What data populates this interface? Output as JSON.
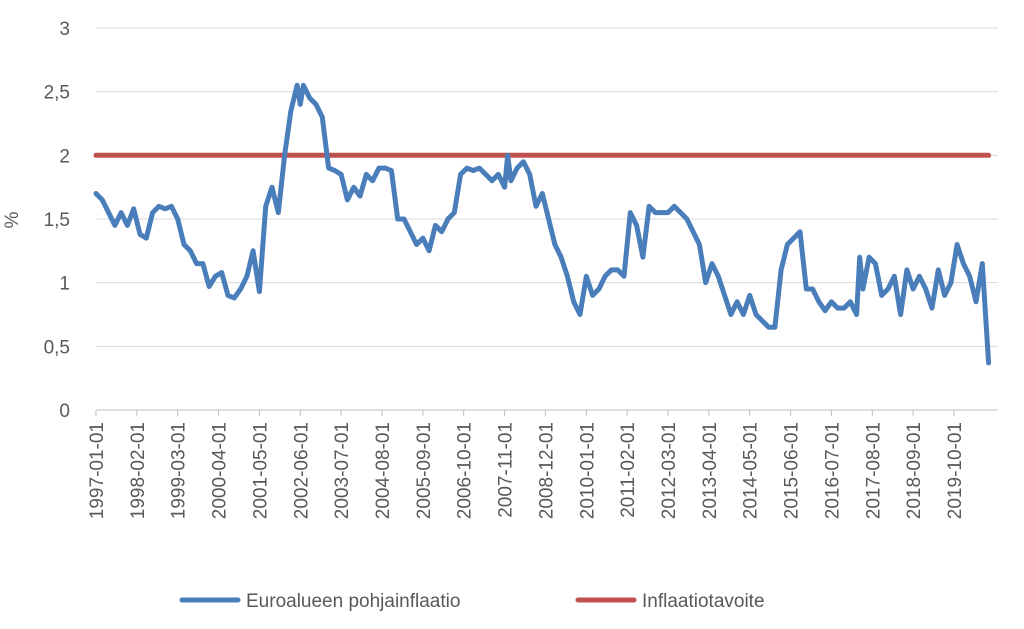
{
  "chart_data": {
    "type": "line",
    "ylabel": "%",
    "ylim": [
      0,
      3
    ],
    "yticks": [
      {
        "value": 0,
        "label": "0"
      },
      {
        "value": 0.5,
        "label": "0,5"
      },
      {
        "value": 1,
        "label": "1"
      },
      {
        "value": 1.5,
        "label": "1,5"
      },
      {
        "value": 2,
        "label": "2"
      },
      {
        "value": 2.5,
        "label": "2,5"
      },
      {
        "value": 3,
        "label": "3"
      }
    ],
    "xlim": [
      "1997-01",
      "2020-12"
    ],
    "xticks": [
      "1997-01-01",
      "1998-02-01",
      "1999-03-01",
      "2000-04-01",
      "2001-05-01",
      "2002-06-01",
      "2003-07-01",
      "2004-08-01",
      "2005-09-01",
      "2006-10-01",
      "2007-11-01",
      "2008-12-01",
      "2010-01-01",
      "2011-02-01",
      "2012-03-01",
      "2013-04-01",
      "2014-05-01",
      "2015-06-01",
      "2016-07-01",
      "2017-08-01",
      "2018-09-01",
      "2019-10-01"
    ],
    "grid": true,
    "legend_position": "bottom",
    "series": [
      {
        "name": "Euroalueen pohjainflaatio",
        "color": "#4a7ebb",
        "points": [
          [
            "1997-01",
            1.7
          ],
          [
            "1997-03",
            1.65
          ],
          [
            "1997-05",
            1.55
          ],
          [
            "1997-07",
            1.45
          ],
          [
            "1997-09",
            1.55
          ],
          [
            "1997-11",
            1.45
          ],
          [
            "1998-01",
            1.58
          ],
          [
            "1998-03",
            1.38
          ],
          [
            "1998-05",
            1.35
          ],
          [
            "1998-07",
            1.55
          ],
          [
            "1998-09",
            1.6
          ],
          [
            "1998-11",
            1.58
          ],
          [
            "1999-01",
            1.6
          ],
          [
            "1999-03",
            1.5
          ],
          [
            "1999-05",
            1.3
          ],
          [
            "1999-07",
            1.25
          ],
          [
            "1999-09",
            1.15
          ],
          [
            "1999-11",
            1.15
          ],
          [
            "2000-01",
            0.97
          ],
          [
            "2000-03",
            1.05
          ],
          [
            "2000-05",
            1.08
          ],
          [
            "2000-07",
            0.9
          ],
          [
            "2000-09",
            0.88
          ],
          [
            "2000-11",
            0.95
          ],
          [
            "2001-01",
            1.05
          ],
          [
            "2001-03",
            1.25
          ],
          [
            "2001-05",
            0.93
          ],
          [
            "2001-07",
            1.6
          ],
          [
            "2001-09",
            1.75
          ],
          [
            "2001-11",
            1.55
          ],
          [
            "2002-01",
            2.0
          ],
          [
            "2002-03",
            2.35
          ],
          [
            "2002-05",
            2.55
          ],
          [
            "2002-06",
            2.4
          ],
          [
            "2002-07",
            2.55
          ],
          [
            "2002-09",
            2.45
          ],
          [
            "2002-11",
            2.4
          ],
          [
            "2003-01",
            2.3
          ],
          [
            "2003-03",
            1.9
          ],
          [
            "2003-05",
            1.88
          ],
          [
            "2003-07",
            1.85
          ],
          [
            "2003-09",
            1.65
          ],
          [
            "2003-11",
            1.75
          ],
          [
            "2004-01",
            1.68
          ],
          [
            "2004-03",
            1.85
          ],
          [
            "2004-05",
            1.8
          ],
          [
            "2004-07",
            1.9
          ],
          [
            "2004-09",
            1.9
          ],
          [
            "2004-11",
            1.88
          ],
          [
            "2005-01",
            1.5
          ],
          [
            "2005-03",
            1.5
          ],
          [
            "2005-05",
            1.4
          ],
          [
            "2005-07",
            1.3
          ],
          [
            "2005-09",
            1.35
          ],
          [
            "2005-11",
            1.25
          ],
          [
            "2006-01",
            1.45
          ],
          [
            "2006-03",
            1.4
          ],
          [
            "2006-05",
            1.5
          ],
          [
            "2006-07",
            1.55
          ],
          [
            "2006-09",
            1.85
          ],
          [
            "2006-11",
            1.9
          ],
          [
            "2007-01",
            1.88
          ],
          [
            "2007-03",
            1.9
          ],
          [
            "2007-05",
            1.85
          ],
          [
            "2007-07",
            1.8
          ],
          [
            "2007-09",
            1.85
          ],
          [
            "2007-11",
            1.75
          ],
          [
            "2007-12",
            2.0
          ],
          [
            "2008-01",
            1.8
          ],
          [
            "2008-03",
            1.9
          ],
          [
            "2008-05",
            1.95
          ],
          [
            "2008-07",
            1.85
          ],
          [
            "2008-09",
            1.6
          ],
          [
            "2008-11",
            1.7
          ],
          [
            "2009-01",
            1.5
          ],
          [
            "2009-03",
            1.3
          ],
          [
            "2009-05",
            1.2
          ],
          [
            "2009-07",
            1.05
          ],
          [
            "2009-09",
            0.85
          ],
          [
            "2009-11",
            0.75
          ],
          [
            "2010-01",
            1.05
          ],
          [
            "2010-03",
            0.9
          ],
          [
            "2010-05",
            0.95
          ],
          [
            "2010-07",
            1.05
          ],
          [
            "2010-09",
            1.1
          ],
          [
            "2010-11",
            1.1
          ],
          [
            "2011-01",
            1.05
          ],
          [
            "2011-03",
            1.55
          ],
          [
            "2011-05",
            1.45
          ],
          [
            "2011-07",
            1.2
          ],
          [
            "2011-09",
            1.6
          ],
          [
            "2011-11",
            1.55
          ],
          [
            "2012-01",
            1.55
          ],
          [
            "2012-03",
            1.55
          ],
          [
            "2012-05",
            1.6
          ],
          [
            "2012-07",
            1.55
          ],
          [
            "2012-09",
            1.5
          ],
          [
            "2012-11",
            1.4
          ],
          [
            "2013-01",
            1.3
          ],
          [
            "2013-03",
            1.0
          ],
          [
            "2013-05",
            1.15
          ],
          [
            "2013-07",
            1.05
          ],
          [
            "2013-09",
            0.9
          ],
          [
            "2013-11",
            0.75
          ],
          [
            "2014-01",
            0.85
          ],
          [
            "2014-03",
            0.75
          ],
          [
            "2014-05",
            0.9
          ],
          [
            "2014-07",
            0.75
          ],
          [
            "2014-09",
            0.7
          ],
          [
            "2014-11",
            0.65
          ],
          [
            "2015-01",
            0.65
          ],
          [
            "2015-03",
            1.1
          ],
          [
            "2015-05",
            1.3
          ],
          [
            "2015-07",
            1.35
          ],
          [
            "2015-09",
            1.4
          ],
          [
            "2015-11",
            0.95
          ],
          [
            "2016-01",
            0.95
          ],
          [
            "2016-03",
            0.85
          ],
          [
            "2016-05",
            0.78
          ],
          [
            "2016-07",
            0.85
          ],
          [
            "2016-09",
            0.8
          ],
          [
            "2016-11",
            0.8
          ],
          [
            "2017-01",
            0.85
          ],
          [
            "2017-03",
            0.75
          ],
          [
            "2017-04",
            1.2
          ],
          [
            "2017-05",
            0.95
          ],
          [
            "2017-07",
            1.2
          ],
          [
            "2017-09",
            1.15
          ],
          [
            "2017-11",
            0.9
          ],
          [
            "2018-01",
            0.95
          ],
          [
            "2018-03",
            1.05
          ],
          [
            "2018-05",
            0.75
          ],
          [
            "2018-07",
            1.1
          ],
          [
            "2018-09",
            0.95
          ],
          [
            "2018-11",
            1.05
          ],
          [
            "2019-01",
            0.95
          ],
          [
            "2019-03",
            0.8
          ],
          [
            "2019-05",
            1.1
          ],
          [
            "2019-07",
            0.9
          ],
          [
            "2019-09",
            1.0
          ],
          [
            "2019-11",
            1.3
          ],
          [
            "2020-01",
            1.15
          ],
          [
            "2020-03",
            1.05
          ],
          [
            "2020-05",
            0.85
          ],
          [
            "2020-07",
            1.15
          ],
          [
            "2020-09",
            0.37
          ]
        ]
      },
      {
        "name": "Inflaatiotavoite",
        "color": "#c0504d",
        "points": [
          [
            "1997-01",
            2
          ],
          [
            "2020-09",
            2
          ]
        ]
      }
    ]
  }
}
